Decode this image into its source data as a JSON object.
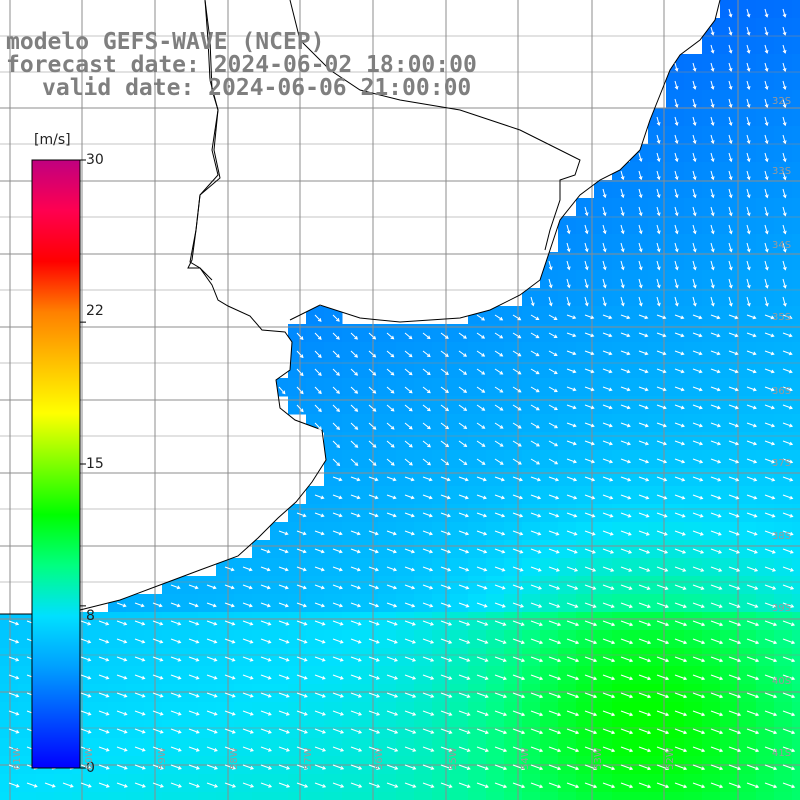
{
  "title": {
    "line1": "modelo GEFS-WAVE (NCEP)",
    "line2": "forecast date: 2024-06-02 18:00:00",
    "line3": "valid date: 2024-06-06 21:00:00"
  },
  "colorbar": {
    "units": "[m/s]",
    "ticks": [
      "30",
      "22",
      "15",
      "8",
      "0"
    ],
    "tick_values": [
      30,
      22,
      15,
      8,
      0
    ],
    "min": 0,
    "max": 30,
    "colors": [
      "#0000ff",
      "#0050ff",
      "#00a0ff",
      "#00e0ff",
      "#00ff80",
      "#00ff00",
      "#80ff00",
      "#ffff00",
      "#ffc000",
      "#ff8000",
      "#ff0000",
      "#ff0050",
      "#c00080"
    ]
  },
  "lat_labels": [
    "32S",
    "33S",
    "34S",
    "35S",
    "36S",
    "37S",
    "38S",
    "39S",
    "40S",
    "41S"
  ],
  "lon_labels": [
    "61W",
    "60W",
    "59W",
    "58W",
    "57W",
    "56W",
    "55W",
    "54W",
    "53W",
    "52W"
  ],
  "map": {
    "parameter": "wind speed and direction",
    "land_color": "#ffffff",
    "grid_color": "#8c8c8c",
    "arrow_color": "#ffffff",
    "max_speed_region": "southeast, ~11 m/s",
    "min_speed_region": "coastal north, ~2 m/s"
  }
}
